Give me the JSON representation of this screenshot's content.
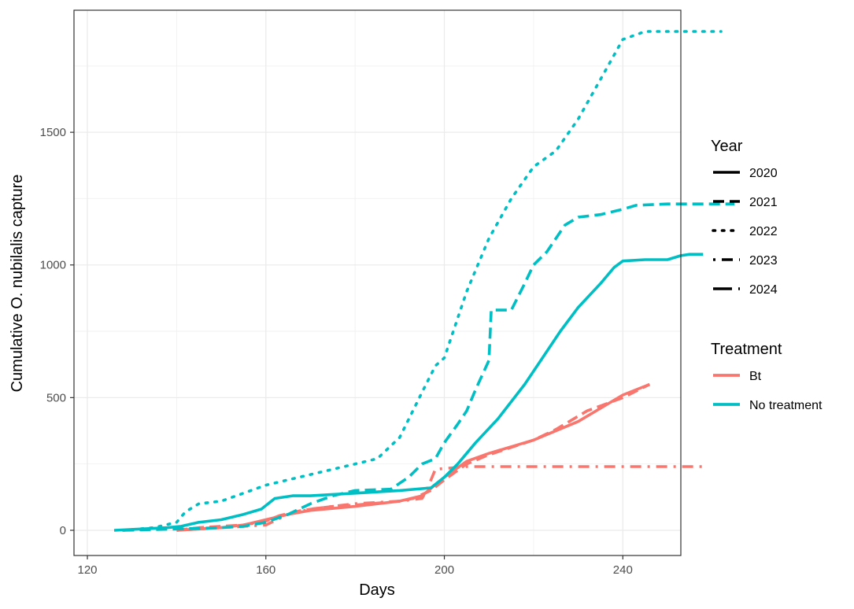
{
  "chart_data": {
    "type": "line",
    "xlabel": "Days",
    "ylabel": "Cumulative O. nubilalis capture",
    "xlim": [
      117,
      253
    ],
    "ylim": [
      -95,
      1960
    ],
    "xticks": [
      120,
      160,
      200,
      240
    ],
    "yticks": [
      0,
      500,
      1000,
      1500
    ],
    "grid": true,
    "legend_position": "right",
    "legends": [
      {
        "title": "Year",
        "type": "linetype",
        "entries": [
          {
            "label": "2020",
            "linetype": "solid"
          },
          {
            "label": "2021",
            "linetype": "dashed"
          },
          {
            "label": "2022",
            "linetype": "dotted"
          },
          {
            "label": "2023",
            "linetype": "dotdash"
          },
          {
            "label": "2024",
            "linetype": "longdash"
          }
        ]
      },
      {
        "title": "Treatment",
        "type": "color",
        "entries": [
          {
            "label": "Bt",
            "color": "#F8766D"
          },
          {
            "label": "No treatment",
            "color": "#00BFC4"
          }
        ]
      }
    ],
    "series": [
      {
        "year": "2020",
        "treatment": "Bt",
        "linetype": "solid",
        "color": "#F8766D",
        "x": [
          140,
          145,
          150,
          155,
          160,
          165,
          170,
          180,
          190,
          195,
          200,
          205,
          210,
          220,
          230,
          240,
          246
        ],
        "y": [
          0,
          5,
          10,
          20,
          40,
          60,
          75,
          90,
          110,
          130,
          200,
          260,
          290,
          340,
          410,
          510,
          550
        ]
      },
      {
        "year": "2021",
        "treatment": "Bt",
        "linetype": "dashed",
        "color": "#F8766D",
        "x": [
          140,
          145,
          150,
          155,
          160,
          163,
          168,
          175,
          180,
          190,
          193,
          197,
          200,
          205,
          210,
          220,
          225,
          232,
          240,
          246
        ],
        "y": [
          0,
          10,
          15,
          20,
          35,
          55,
          75,
          90,
          95,
          110,
          120,
          150,
          190,
          250,
          285,
          340,
          380,
          450,
          500,
          550
        ]
      },
      {
        "year": "2023",
        "treatment": "Bt",
        "linetype": "dotdash",
        "color": "#F8766D",
        "x": [
          140,
          150,
          160,
          165,
          170,
          180,
          190,
          195,
          196,
          198,
          205,
          215,
          258
        ],
        "y": [
          0,
          10,
          20,
          60,
          80,
          100,
          110,
          120,
          150,
          230,
          240,
          240,
          240
        ]
      },
      {
        "year": "2020",
        "treatment": "No treatment",
        "linetype": "solid",
        "color": "#00BFC4",
        "x": [
          126,
          132,
          138,
          141,
          145,
          150,
          155,
          159,
          162,
          166,
          170,
          180,
          190,
          197,
          200,
          203,
          207,
          212,
          218,
          222,
          226,
          230,
          235,
          238,
          240,
          245,
          250,
          253,
          255,
          258
        ],
        "y": [
          0,
          5,
          10,
          15,
          30,
          40,
          60,
          80,
          120,
          130,
          130,
          140,
          150,
          160,
          200,
          250,
          330,
          420,
          550,
          650,
          750,
          840,
          930,
          990,
          1015,
          1020,
          1020,
          1035,
          1040,
          1040
        ]
      },
      {
        "year": "2021",
        "treatment": "No treatment",
        "linetype": "dashed",
        "color": "#00BFC4",
        "x": [
          128,
          140,
          150,
          155,
          160,
          165,
          170,
          175,
          180,
          188,
          192,
          195,
          198,
          200,
          203,
          205,
          207,
          210,
          210.5,
          215,
          218,
          220,
          223,
          227,
          230,
          235,
          240,
          243,
          250,
          260,
          265
        ],
        "y": [
          0,
          5,
          10,
          15,
          30,
          60,
          100,
          130,
          150,
          155,
          200,
          250,
          270,
          330,
          400,
          450,
          530,
          640,
          830,
          830,
          930,
          1000,
          1050,
          1150,
          1180,
          1190,
          1210,
          1225,
          1230,
          1230,
          1230
        ]
      },
      {
        "year": "2022",
        "treatment": "No treatment",
        "linetype": "dotted",
        "color": "#00BFC4",
        "x": [
          128,
          135,
          140,
          142,
          145,
          150,
          155,
          160,
          170,
          180,
          185,
          190,
          195,
          198,
          200,
          205,
          210,
          215,
          220,
          225,
          230,
          235,
          240,
          245,
          255,
          262
        ],
        "y": [
          0,
          10,
          30,
          70,
          100,
          110,
          140,
          170,
          210,
          250,
          270,
          350,
          520,
          620,
          650,
          900,
          1100,
          1250,
          1370,
          1430,
          1550,
          1700,
          1850,
          1880,
          1880,
          1880
        ]
      }
    ]
  }
}
